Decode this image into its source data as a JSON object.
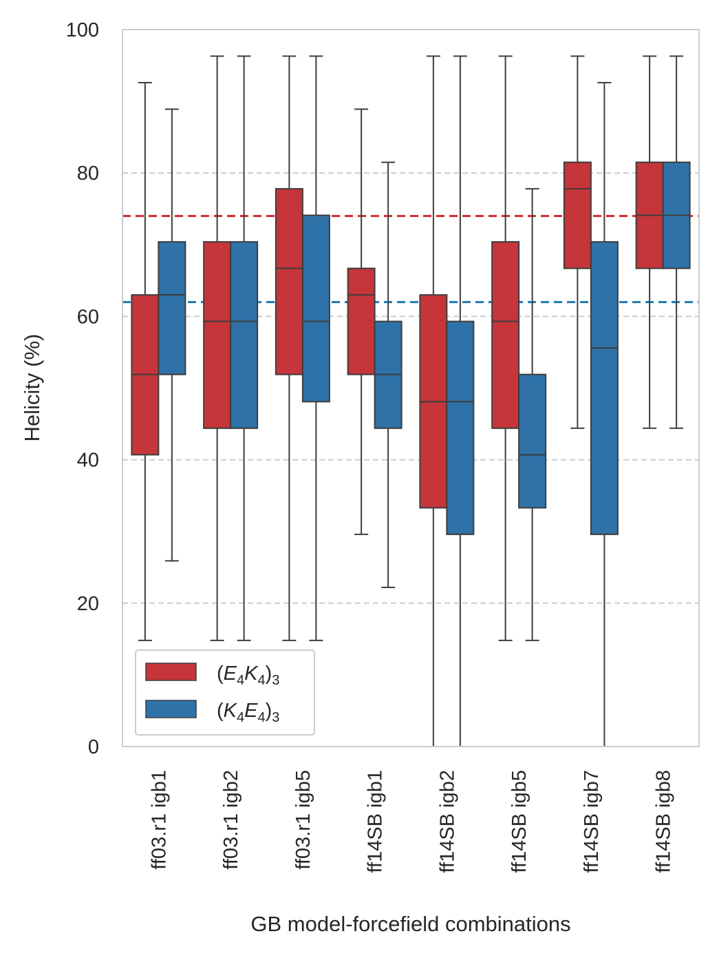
{
  "chart_data": {
    "type": "box",
    "title": "",
    "xlabel": "GB model-forcefield combinations",
    "ylabel": "Helicity (%)",
    "ylim": [
      0,
      100
    ],
    "yticks": [
      0,
      20,
      40,
      60,
      80,
      100
    ],
    "grid": "horizontal dashed",
    "legend_position": "bottom-left",
    "categories": [
      "ff03.r1 igb1",
      "ff03.r1 igb2",
      "ff03.r1 igb5",
      "ff14SB igb1",
      "ff14SB igb2",
      "ff14SB igb5",
      "ff14SB igb7",
      "ff14SB igb8"
    ],
    "series": [
      {
        "name": "(E4K4)3",
        "legend": {
          "pre": "(",
          "a": "E",
          "s1": "4",
          "b": "K",
          "s2": "4",
          "post": ")",
          "s3": "3"
        },
        "color": "#c53539",
        "boxes": [
          {
            "min": 14.8,
            "q1": 40.7,
            "median": 51.9,
            "q3": 63.0,
            "max": 92.6
          },
          {
            "min": 14.8,
            "q1": 44.4,
            "median": 59.3,
            "q3": 70.4,
            "max": 96.3
          },
          {
            "min": 14.8,
            "q1": 51.9,
            "median": 66.7,
            "q3": 77.8,
            "max": 96.3
          },
          {
            "min": 29.6,
            "q1": 51.9,
            "median": 63.0,
            "q3": 66.7,
            "max": 88.9
          },
          {
            "min": 0.0,
            "q1": 33.3,
            "median": 48.1,
            "q3": 63.0,
            "max": 96.3
          },
          {
            "min": 14.8,
            "q1": 44.4,
            "median": 59.3,
            "q3": 70.4,
            "max": 96.3
          },
          {
            "min": 44.4,
            "q1": 66.7,
            "median": 77.8,
            "q3": 81.5,
            "max": 96.3
          },
          {
            "min": 44.4,
            "q1": 66.7,
            "median": 74.1,
            "q3": 81.5,
            "max": 96.3
          }
        ],
        "reference_line": 74.0
      },
      {
        "name": "(K4E4)3",
        "legend": {
          "pre": "(",
          "a": "K",
          "s1": "4",
          "b": "E",
          "s2": "4",
          "post": ")",
          "s3": "3"
        },
        "color": "#2f72a8",
        "boxes": [
          {
            "min": 25.9,
            "q1": 51.9,
            "median": 63.0,
            "q3": 70.4,
            "max": 88.9
          },
          {
            "min": 14.8,
            "q1": 44.4,
            "median": 59.3,
            "q3": 70.4,
            "max": 96.3
          },
          {
            "min": 14.8,
            "q1": 48.1,
            "median": 59.3,
            "q3": 74.1,
            "max": 96.3
          },
          {
            "min": 22.2,
            "q1": 44.4,
            "median": 51.9,
            "q3": 59.3,
            "max": 81.5
          },
          {
            "min": 0.0,
            "q1": 29.6,
            "median": 48.1,
            "q3": 59.3,
            "max": 96.3
          },
          {
            "min": 14.8,
            "q1": 33.3,
            "median": 40.7,
            "q3": 51.9,
            "max": 77.8
          },
          {
            "min": 0.0,
            "q1": 29.6,
            "median": 55.6,
            "q3": 70.4,
            "max": 92.6
          },
          {
            "min": 44.4,
            "q1": 66.7,
            "median": 74.1,
            "q3": 81.5,
            "max": 96.3
          }
        ],
        "reference_line": 62.0
      }
    ],
    "reference_colors": [
      "#d62728",
      "#1f77b4"
    ]
  }
}
